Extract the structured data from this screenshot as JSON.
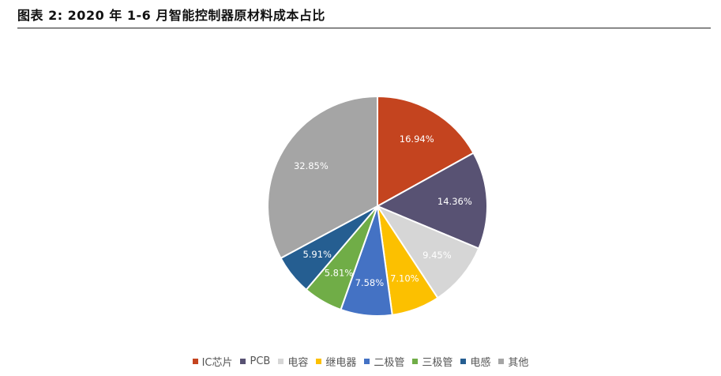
{
  "title": "图表 2:   2020 年 1-6 月智能控制器原材料成本占比",
  "chart_data": {
    "type": "pie",
    "title": "",
    "legend_position": "bottom",
    "start": "top, clockwise",
    "series": [
      {
        "name": "IC芯片",
        "value": 16.94,
        "label": "16.94%",
        "color": "#C4441F"
      },
      {
        "name": "PCB",
        "value": 14.36,
        "label": "14.36%",
        "color": "#585273"
      },
      {
        "name": "电容",
        "value": 9.45,
        "label": "9.45%",
        "color": "#D6D6D6"
      },
      {
        "name": "继电器",
        "value": 7.1,
        "label": "7.10%",
        "color": "#FCC000"
      },
      {
        "name": "二极管",
        "value": 7.58,
        "label": "7.58%",
        "color": "#4472C4"
      },
      {
        "name": "三极管",
        "value": 5.81,
        "label": "5.81%",
        "color": "#70AD47"
      },
      {
        "name": "电感",
        "value": 5.91,
        "label": "5.91%",
        "color": "#255E91"
      },
      {
        "name": "其他",
        "value": 32.85,
        "label": "32.85%",
        "color": "#A5A5A5"
      }
    ]
  }
}
